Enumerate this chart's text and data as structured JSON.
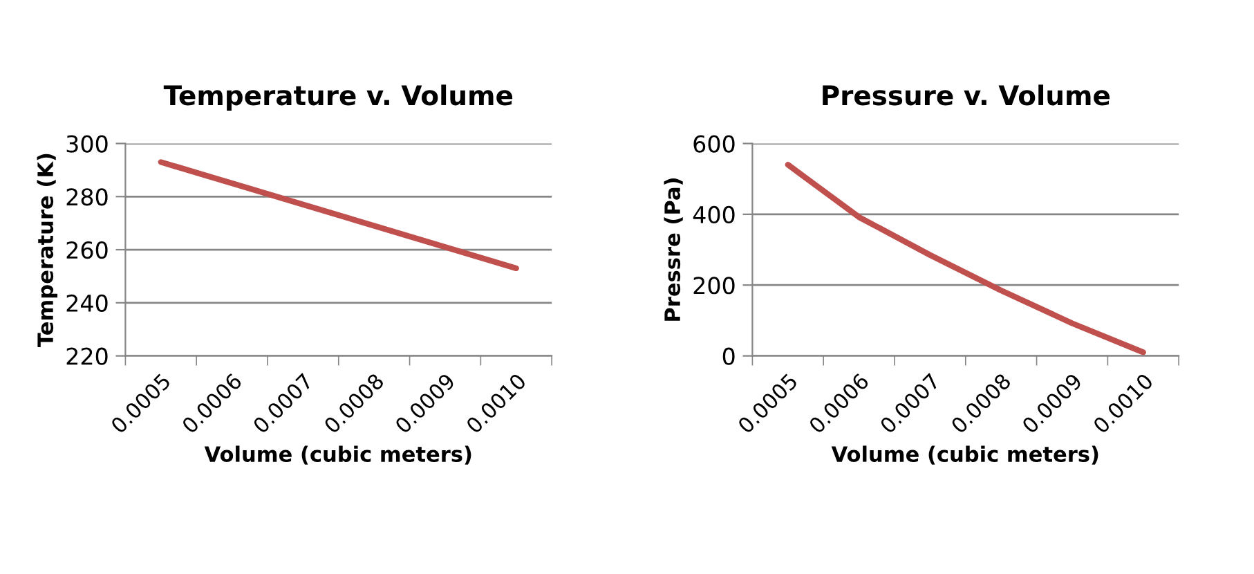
{
  "chart_data": [
    {
      "type": "line",
      "title": "Temperature v. Volume",
      "xlabel": "Volume (cubic meters)",
      "ylabel": "Temperature (K)",
      "categories": [
        "0.0005",
        "0.0006",
        "0.0007",
        "0.0008",
        "0.0009",
        "0.0010"
      ],
      "series": [
        {
          "color": "#c0504d",
          "values": [
            293,
            285,
            277,
            269,
            261,
            253
          ]
        }
      ],
      "ylim": [
        220,
        300
      ],
      "yticks": [
        220,
        240,
        260,
        280,
        300
      ],
      "grid": "y",
      "legend": false,
      "marker": "none",
      "line_style": "solid"
    },
    {
      "type": "line",
      "title": "Pressure v. Volume",
      "xlabel": "Volume (cubic meters)",
      "ylabel": "Pressre (Pa)",
      "categories": [
        "0.0005",
        "0.0006",
        "0.0007",
        "0.0008",
        "0.0009",
        "0.0010"
      ],
      "series": [
        {
          "color": "#c0504d",
          "values": [
            540,
            392,
            285,
            185,
            92,
            10
          ]
        }
      ],
      "ylim": [
        0,
        600
      ],
      "yticks": [
        0,
        200,
        400,
        600
      ],
      "grid": "y",
      "legend": false,
      "marker": "none",
      "line_style": "solid"
    }
  ]
}
